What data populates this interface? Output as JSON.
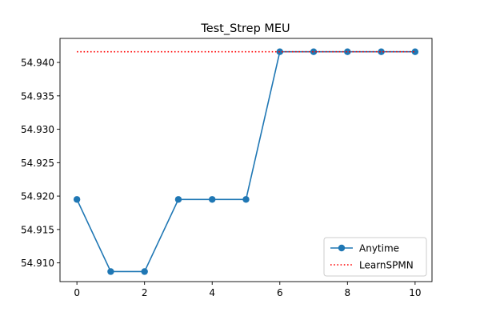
{
  "chart_data": {
    "type": "line",
    "title": "Test_Strep MEU",
    "xlabel": "",
    "ylabel": "",
    "xlim": [
      -0.5,
      10.5
    ],
    "ylim": [
      54.9072,
      54.9436
    ],
    "xticks": [
      0,
      2,
      4,
      6,
      8,
      10
    ],
    "xtick_labels": [
      "0",
      "2",
      "4",
      "6",
      "8",
      "10"
    ],
    "yticks": [
      54.91,
      54.915,
      54.92,
      54.925,
      54.93,
      54.935,
      54.94
    ],
    "ytick_labels": [
      "54.910",
      "54.915",
      "54.920",
      "54.925",
      "54.930",
      "54.935",
      "54.940"
    ],
    "grid": false,
    "legend_position": "lower-right",
    "series": [
      {
        "name": "Anytime",
        "style": "solid-line-circle-markers",
        "color": "#1f77b4",
        "x": [
          0,
          1,
          2,
          3,
          4,
          5,
          6,
          7,
          8,
          9,
          10
        ],
        "y": [
          54.9195,
          54.9087,
          54.9087,
          54.9195,
          54.9195,
          54.9195,
          54.9416,
          54.9416,
          54.9416,
          54.9416,
          54.9416
        ]
      },
      {
        "name": "LearnSPMN",
        "style": "dotted-line",
        "color": "#ff0000",
        "x": [
          0,
          10
        ],
        "y": [
          54.9416,
          54.9416
        ]
      }
    ]
  }
}
